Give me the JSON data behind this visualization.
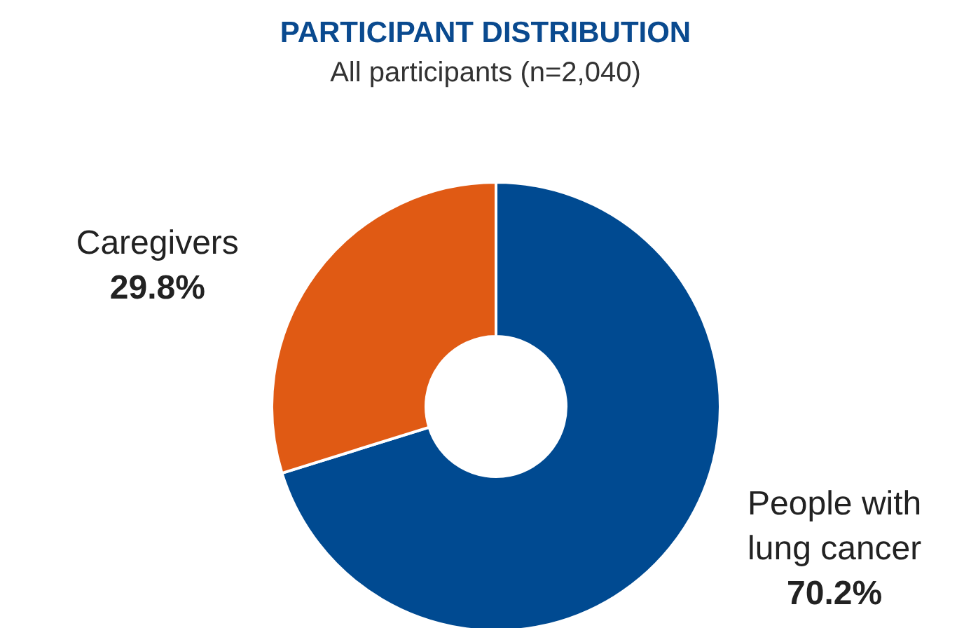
{
  "chart_data": {
    "type": "donut",
    "title": "PARTICIPANT DISTRIBUTION",
    "subtitle": "All participants (n=2,040)",
    "categories": [
      "People with lung cancer",
      "Caregivers"
    ],
    "values": [
      70.2,
      29.8
    ],
    "colors": [
      "#004a91",
      "#e05a14"
    ],
    "value_labels": [
      "70.2%",
      "29.8%"
    ]
  }
}
